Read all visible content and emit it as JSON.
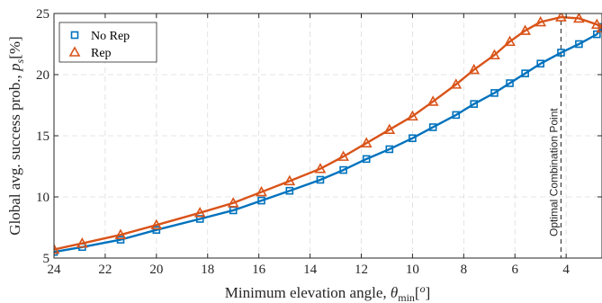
{
  "chart_data": {
    "type": "line",
    "xlabel_text": "Minimum elevation angle, ",
    "xlabel_symbol": "θ",
    "xlabel_sub": "min",
    "xlabel_unit_open": "[",
    "xlabel_unit": "o",
    "xlabel_unit_close": "]",
    "ylabel_text": "Global avg. success prob., ",
    "ylabel_symbol": "p",
    "ylabel_sub": "s",
    "ylabel_unit": "[%]",
    "xlim": [
      24,
      2.6
    ],
    "ylim": [
      5,
      25
    ],
    "x_reversed": true,
    "xticks": [
      24,
      22,
      20,
      18,
      16,
      14,
      12,
      10,
      8,
      6,
      4
    ],
    "yticks": [
      5,
      10,
      15,
      20,
      25
    ],
    "grid": true,
    "legend_position": "top-left",
    "annotation": {
      "text": "Optimal Combination Point",
      "x": 4.2
    },
    "x": [
      24,
      22.9,
      21.4,
      20.0,
      18.3,
      17.0,
      15.9,
      14.8,
      13.6,
      12.7,
      11.8,
      10.9,
      10.0,
      9.2,
      8.3,
      7.6,
      6.8,
      6.2,
      5.6,
      5.0,
      4.2,
      3.5,
      2.8,
      2.6
    ],
    "series": [
      {
        "name": "No Rep",
        "color": "#0072BD",
        "marker": "square",
        "values": [
          5.5,
          5.9,
          6.5,
          7.3,
          8.2,
          8.9,
          9.7,
          10.5,
          11.4,
          12.2,
          13.1,
          13.9,
          14.8,
          15.7,
          16.7,
          17.6,
          18.5,
          19.3,
          20.1,
          20.9,
          21.8,
          22.5,
          23.3,
          23.9
        ]
      },
      {
        "name": "Rep",
        "color": "#D95319",
        "marker": "triangle",
        "values": [
          5.7,
          6.2,
          6.9,
          7.7,
          8.7,
          9.5,
          10.4,
          11.3,
          12.3,
          13.3,
          14.4,
          15.5,
          16.6,
          17.8,
          19.2,
          20.4,
          21.6,
          22.7,
          23.6,
          24.3,
          24.7,
          24.6,
          24.1,
          23.8
        ]
      }
    ]
  }
}
